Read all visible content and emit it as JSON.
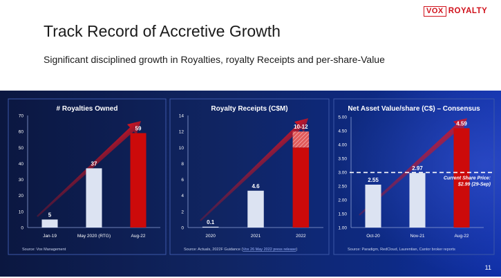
{
  "logo": {
    "box_text": "VOX",
    "text": "ROYALTY",
    "color": "#d0101a"
  },
  "title": "Track Record of Accretive Growth",
  "subtitle": "Significant disciplined growth in Royalties, royalty Receipts and per-share-Value",
  "page_number": "11",
  "colors": {
    "bar_light": "#dce3f2",
    "bar_red": "#cc0a0a",
    "arrow": "#d4121c"
  },
  "chart_data": [
    {
      "type": "bar",
      "title": "# Royalties Owned",
      "categories": [
        "Jan-19",
        "May 2020 (RTG)",
        "Aug-22"
      ],
      "values": [
        5,
        37,
        59
      ],
      "value_labels": [
        "5",
        "37",
        "59"
      ],
      "ylim": [
        0,
        70
      ],
      "yticks": [
        0,
        10,
        20,
        30,
        40,
        50,
        60,
        70
      ],
      "ytick_labels": [
        "0",
        "10",
        "20",
        "30",
        "40",
        "50",
        "60",
        "70"
      ],
      "highlight_index": 2,
      "source": "Source: Vox Management"
    },
    {
      "type": "bar",
      "title": "Royalty Receipts (C$M)",
      "categories": [
        "2020",
        "2021",
        "2022"
      ],
      "values": [
        0.1,
        4.6,
        10
      ],
      "range_top": [
        null,
        null,
        12
      ],
      "value_labels": [
        "0.1",
        "4.6",
        "10-12"
      ],
      "ylim": [
        0,
        14
      ],
      "yticks": [
        0,
        2,
        4,
        6,
        8,
        10,
        12,
        14
      ],
      "ytick_labels": [
        "0",
        "2",
        "4",
        "6",
        "8",
        "10",
        "12",
        "14"
      ],
      "highlight_index": 2,
      "source_prefix": "Source: Actuals, 2022F Guidance (",
      "source_link": "Vox 26 May 2022 press release",
      "source_suffix": ")"
    },
    {
      "type": "bar",
      "title": "Net Asset Value/share (C$)  – Consensus",
      "categories": [
        "Oct-20",
        "Nov-21",
        "Aug-22"
      ],
      "values": [
        2.55,
        2.97,
        4.59
      ],
      "value_labels": [
        "2.55",
        "2.97",
        "4.59"
      ],
      "ylim": [
        1.0,
        5.0
      ],
      "yticks": [
        1.0,
        1.5,
        2.0,
        2.5,
        3.0,
        3.5,
        4.0,
        4.5,
        5.0
      ],
      "ytick_labels": [
        "1.00",
        "1.50",
        "2.00",
        "2.50",
        "3.00",
        "3.50",
        "4.00",
        "4.50",
        "5.00"
      ],
      "highlight_index": 2,
      "reference_line": {
        "value": 2.99,
        "label_line1": "Current Share Price:",
        "label_line2": "$2.99 (29-Sep)"
      },
      "source": "Source: Paradigm, RedCloud, Laurentian, Cantor broker reports"
    }
  ]
}
